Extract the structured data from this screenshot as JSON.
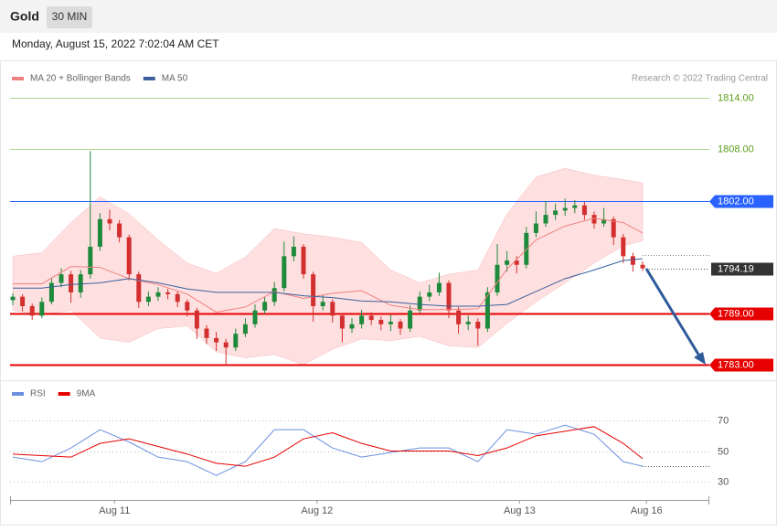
{
  "header": {
    "symbol": "Gold",
    "timeframe": "30 MIN",
    "date": "Monday, August 15, 2022 7:02:04 AM CET"
  },
  "chart_data": [
    {
      "type": "candlestick",
      "source": "Research © 2022 Trading Central",
      "up_color": "#1e8a3c",
      "down_color": "#d32f2f",
      "ylim": [
        1782,
        1815
      ],
      "ohlc": [
        [
          1790.5,
          1791.3,
          1789.9,
          1790.9
        ],
        [
          1790.9,
          1791.2,
          1789.2,
          1789.8
        ],
        [
          1789.8,
          1790.1,
          1788.2,
          1788.7
        ],
        [
          1788.7,
          1790.8,
          1788.4,
          1790.3
        ],
        [
          1790.3,
          1793.0,
          1790.0,
          1792.5
        ],
        [
          1792.5,
          1794.2,
          1792.0,
          1793.5
        ],
        [
          1793.5,
          1793.9,
          1790.2,
          1791.4
        ],
        [
          1791.4,
          1794.0,
          1790.8,
          1793.5
        ],
        [
          1793.5,
          1807.8,
          1793.0,
          1796.7
        ],
        [
          1796.7,
          1800.6,
          1796.2,
          1799.9
        ],
        [
          1799.9,
          1801.0,
          1798.6,
          1799.4
        ],
        [
          1799.4,
          1799.8,
          1797.2,
          1797.8
        ],
        [
          1797.8,
          1798.1,
          1792.8,
          1793.5
        ],
        [
          1793.5,
          1793.8,
          1789.6,
          1790.3
        ],
        [
          1790.3,
          1791.5,
          1789.8,
          1790.9
        ],
        [
          1790.9,
          1792.0,
          1790.4,
          1791.4
        ],
        [
          1791.4,
          1791.8,
          1790.6,
          1791.2
        ],
        [
          1791.2,
          1791.5,
          1789.7,
          1790.3
        ],
        [
          1790.3,
          1790.6,
          1788.6,
          1789.3
        ],
        [
          1789.3,
          1789.6,
          1786.0,
          1787.2
        ],
        [
          1787.2,
          1787.6,
          1785.4,
          1786.1
        ],
        [
          1786.1,
          1786.8,
          1784.6,
          1785.6
        ],
        [
          1785.6,
          1786.0,
          1782.9,
          1785.0
        ],
        [
          1785.0,
          1787.2,
          1784.6,
          1786.6
        ],
        [
          1786.6,
          1788.4,
          1786.2,
          1787.7
        ],
        [
          1787.7,
          1790.0,
          1787.3,
          1789.3
        ],
        [
          1789.3,
          1790.9,
          1788.9,
          1790.3
        ],
        [
          1790.3,
          1792.6,
          1789.8,
          1791.9
        ],
        [
          1791.9,
          1797.3,
          1791.5,
          1795.6
        ],
        [
          1795.6,
          1797.9,
          1795.0,
          1796.7
        ],
        [
          1796.7,
          1797.0,
          1793.0,
          1793.5
        ],
        [
          1793.5,
          1793.8,
          1788.0,
          1789.8
        ],
        [
          1789.8,
          1791.1,
          1789.3,
          1790.3
        ],
        [
          1790.3,
          1790.6,
          1787.9,
          1788.7
        ],
        [
          1788.7,
          1789.0,
          1785.6,
          1787.2
        ],
        [
          1787.2,
          1788.4,
          1786.7,
          1787.7
        ],
        [
          1787.7,
          1789.4,
          1787.2,
          1788.7
        ],
        [
          1788.7,
          1789.1,
          1787.6,
          1788.2
        ],
        [
          1788.2,
          1788.6,
          1787.0,
          1787.7
        ],
        [
          1787.7,
          1788.8,
          1786.9,
          1788.0
        ],
        [
          1788.0,
          1788.3,
          1786.5,
          1787.2
        ],
        [
          1787.2,
          1789.9,
          1786.8,
          1789.3
        ],
        [
          1789.3,
          1791.5,
          1789.0,
          1790.9
        ],
        [
          1790.9,
          1792.3,
          1790.4,
          1791.4
        ],
        [
          1791.4,
          1793.7,
          1791.0,
          1792.5
        ],
        [
          1792.5,
          1792.8,
          1788.4,
          1789.3
        ],
        [
          1789.3,
          1789.7,
          1786.6,
          1787.7
        ],
        [
          1787.7,
          1788.7,
          1787.0,
          1788.0
        ],
        [
          1788.0,
          1788.4,
          1785.2,
          1787.2
        ],
        [
          1787.2,
          1792.0,
          1786.8,
          1791.4
        ],
        [
          1791.4,
          1797.0,
          1791.0,
          1794.6
        ],
        [
          1794.6,
          1796.2,
          1793.8,
          1795.1
        ],
        [
          1795.1,
          1795.6,
          1793.6,
          1794.6
        ],
        [
          1794.6,
          1799.0,
          1794.2,
          1798.3
        ],
        [
          1798.3,
          1800.8,
          1797.8,
          1799.4
        ],
        [
          1799.4,
          1802.0,
          1799.0,
          1800.4
        ],
        [
          1800.4,
          1801.7,
          1799.8,
          1800.9
        ],
        [
          1800.9,
          1802.3,
          1800.3,
          1801.2
        ],
        [
          1801.2,
          1802.1,
          1800.6,
          1801.5
        ],
        [
          1801.5,
          1801.9,
          1799.8,
          1800.4
        ],
        [
          1800.4,
          1800.8,
          1798.8,
          1799.4
        ],
        [
          1799.4,
          1801.2,
          1799.0,
          1799.9
        ],
        [
          1799.9,
          1800.2,
          1796.9,
          1797.8
        ],
        [
          1797.8,
          1798.2,
          1794.8,
          1795.6
        ],
        [
          1795.6,
          1796.0,
          1793.8,
          1794.6
        ],
        [
          1794.6,
          1795.0,
          1793.9,
          1794.19
        ]
      ],
      "overlay_x": [
        0,
        3,
        6,
        9,
        12,
        15,
        18,
        21,
        24,
        27,
        30,
        33,
        36,
        39,
        42,
        45,
        48,
        51,
        54,
        57,
        60,
        63,
        65
      ],
      "series": [
        {
          "name": "MA 20 + Bollinger Bands",
          "color": "#f08080",
          "band_color": "#ffe0e0",
          "values": [
            1792.4,
            1792.4,
            1794.4,
            1794.3,
            1793.0,
            1792.3,
            1791.2,
            1789.1,
            1789.7,
            1791.5,
            1790.7,
            1791.3,
            1791.6,
            1789.9,
            1789.4,
            1789.4,
            1789.5,
            1794.1,
            1797.5,
            1799.1,
            1800.0,
            1799.5,
            1798.3
          ],
          "upper": [
            1795.6,
            1796.0,
            1799.5,
            1802.5,
            1800.5,
            1797.5,
            1794.8,
            1793.6,
            1795.5,
            1798.8,
            1798.2,
            1797.8,
            1797.2,
            1794.0,
            1792.5,
            1793.5,
            1794.0,
            1800.5,
            1804.8,
            1805.8,
            1805.0,
            1804.5,
            1804.1
          ],
          "lower": [
            1789.3,
            1788.8,
            1789.3,
            1786.1,
            1785.6,
            1787.2,
            1787.5,
            1784.5,
            1783.8,
            1784.2,
            1783.0,
            1784.8,
            1786.0,
            1785.8,
            1786.3,
            1785.2,
            1785.0,
            1787.8,
            1790.3,
            1792.5,
            1794.8,
            1796.8,
            1797.4
          ]
        },
        {
          "name": "MA 50",
          "color": "#3a5f9c",
          "values": [
            1791.9,
            1791.9,
            1792.3,
            1792.5,
            1793.0,
            1792.5,
            1791.8,
            1791.4,
            1791.4,
            1791.4,
            1791.0,
            1790.8,
            1790.4,
            1790.3,
            1790.0,
            1789.8,
            1789.8,
            1790.0,
            1791.5,
            1793.0,
            1794.0,
            1795.1,
            1795.3
          ]
        }
      ],
      "levels": [
        {
          "value": 1814,
          "label": "1814.00",
          "color": "#a8d88e",
          "text_color": "#5a9e1a",
          "style": "text"
        },
        {
          "value": 1808,
          "label": "1808.00",
          "color": "#a8d88e",
          "text_color": "#5a9e1a",
          "style": "text"
        },
        {
          "value": 1802,
          "label": "1802.00",
          "color": "#2962ff",
          "text_color": "#ffffff",
          "style": "box"
        },
        {
          "value": 1789,
          "label": "1789.00",
          "color": "#e60000",
          "text_color": "#ffffff",
          "style": "box"
        },
        {
          "value": 1783,
          "label": "1783.00",
          "color": "#e60000",
          "text_color": "#ffffff",
          "style": "box"
        }
      ],
      "current": 1794.19
    },
    {
      "type": "line",
      "ylim": [
        20,
        80
      ],
      "yticks": [
        30,
        50,
        70
      ],
      "x": [
        0,
        3,
        6,
        9,
        12,
        15,
        18,
        21,
        24,
        27,
        30,
        33,
        36,
        39,
        42,
        45,
        48,
        51,
        54,
        57,
        60,
        63,
        65
      ],
      "series": [
        {
          "name": "RSI",
          "color": "#6b8fe0",
          "values": [
            46,
            43,
            52,
            64,
            56,
            46,
            43,
            34,
            43,
            64,
            64,
            52,
            46,
            49,
            52,
            52,
            43,
            64,
            61,
            67,
            61,
            43,
            40
          ]
        },
        {
          "name": "9MA",
          "color": "#e60000",
          "values": [
            48,
            47,
            46,
            55,
            58,
            53,
            48,
            42,
            40,
            46,
            58,
            62,
            55,
            50,
            50,
            50,
            47,
            52,
            60,
            63,
            66,
            55,
            45
          ]
        }
      ],
      "xticks": [
        {
          "value": 10.5,
          "label": "Aug 11"
        },
        {
          "value": 31.4,
          "label": "Aug 12"
        },
        {
          "value": 52.3,
          "label": "Aug 13"
        },
        {
          "value": 65.4,
          "label": "Aug 16"
        }
      ]
    }
  ]
}
